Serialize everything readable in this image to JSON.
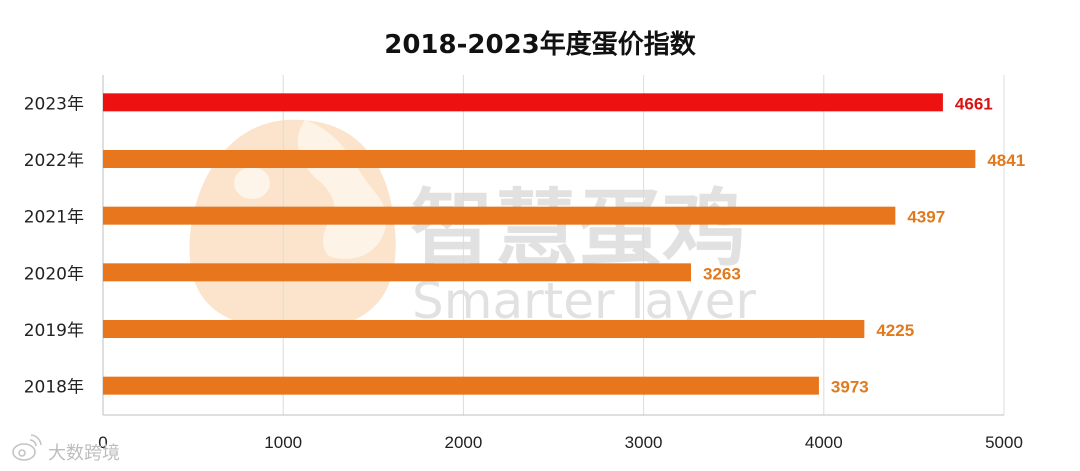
{
  "chart_data": {
    "type": "bar",
    "orientation": "horizontal",
    "title": "2018-2023年度蛋价指数",
    "xlabel": "",
    "ylabel": "",
    "xlim": [
      0,
      5000
    ],
    "xticks": [
      0,
      1000,
      2000,
      3000,
      4000,
      5000
    ],
    "grid": true,
    "legend": "none",
    "categories": [
      "2023年",
      "2022年",
      "2021年",
      "2020年",
      "2019年",
      "2018年"
    ],
    "values": [
      4661,
      4841,
      4397,
      3263,
      4225,
      3973
    ],
    "bar_colors": [
      "#ee1111",
      "#e8761c",
      "#e8761c",
      "#e8761c",
      "#e8761c",
      "#e8761c"
    ],
    "label_colors": [
      "#dd1111",
      "#e07a1c",
      "#e07a1c",
      "#e07a1c",
      "#e07a1c",
      "#e07a1c"
    ]
  },
  "watermark": {
    "chinese": "智慧蛋鸡",
    "english": "Smarter layer",
    "logo_color": "#f6c48c"
  },
  "credit": {
    "text": "大数跨境",
    "icon": "weibo-icon"
  }
}
